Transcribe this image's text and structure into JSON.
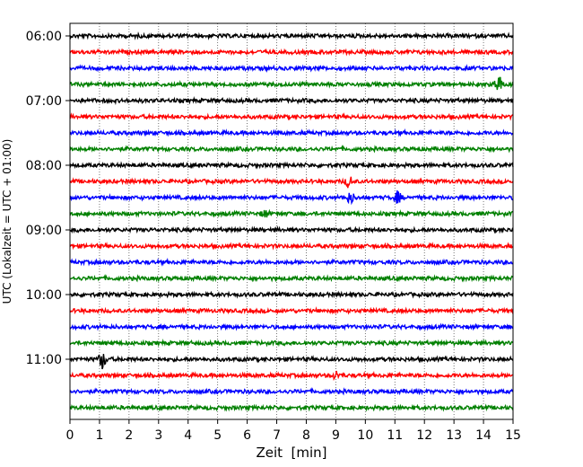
{
  "chart_data": {
    "type": "line",
    "title": "",
    "xlabel": "Zeit  [min]",
    "ylabel": "UTC (Lokalzeit = UTC + 01:00)",
    "xlim": [
      0,
      15
    ],
    "x_ticks": [
      "0",
      "1",
      "2",
      "3",
      "4",
      "5",
      "6",
      "7",
      "8",
      "9",
      "10",
      "11",
      "12",
      "13",
      "14",
      "15"
    ],
    "y_ticks": [
      "06:00",
      "07:00",
      "08:00",
      "09:00",
      "10:00",
      "11:00"
    ],
    "grid": "vertical dotted",
    "trace_colors": [
      "#000000",
      "#ff0000",
      "#0000ff",
      "#008000"
    ],
    "trace_start_times": [
      "06:00",
      "06:15",
      "06:30",
      "06:45",
      "07:00",
      "07:15",
      "07:30",
      "07:45",
      "08:00",
      "08:15",
      "08:30",
      "08:45",
      "09:00",
      "09:15",
      "09:30",
      "09:45",
      "10:00",
      "10:15",
      "10:30",
      "10:45",
      "11:00",
      "11:15",
      "11:30",
      "11:45"
    ],
    "events": [
      {
        "trace": "06:45",
        "minute": 14.5,
        "amplitude": "large"
      },
      {
        "trace": "08:15",
        "minute": 9.45,
        "amplitude": "medium"
      },
      {
        "trace": "08:30",
        "minute": 9.5,
        "amplitude": "medium"
      },
      {
        "trace": "08:30",
        "minute": 11.1,
        "amplitude": "medium"
      },
      {
        "trace": "08:45",
        "minute": 6.6,
        "amplitude": "small"
      },
      {
        "trace": "11:00",
        "minute": 1.1,
        "amplitude": "large"
      },
      {
        "trace": "11:15",
        "minute": 9.0,
        "amplitude": "small"
      }
    ]
  }
}
